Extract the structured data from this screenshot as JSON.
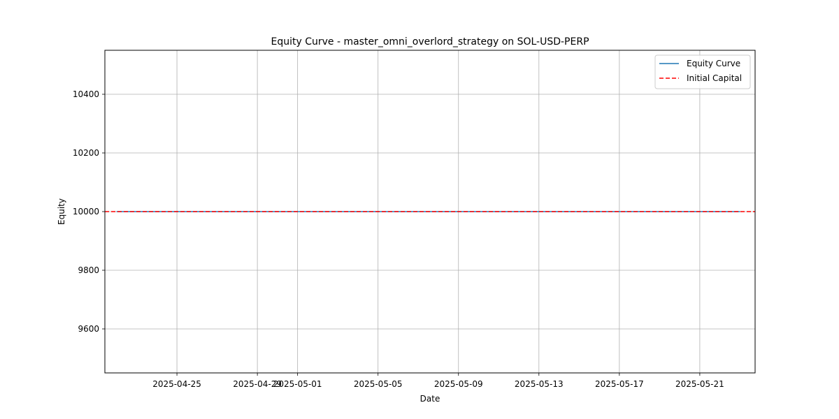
{
  "chart_data": {
    "type": "line",
    "title": "Equity Curve - master_omni_overlord_strategy on SOL-USD-PERP",
    "xlabel": "Date",
    "ylabel": "Equity",
    "x_axis_type": "date",
    "xlim": [
      "2025-04-21T10:00",
      "2025-05-23T18:00"
    ],
    "ylim": [
      9450,
      10550
    ],
    "x_ticks": [
      "2025-04-25",
      "2025-04-29",
      "2025-05-01",
      "2025-05-05",
      "2025-05-09",
      "2025-05-13",
      "2025-05-17",
      "2025-05-21"
    ],
    "y_ticks": [
      9600,
      9800,
      10000,
      10200,
      10400
    ],
    "grid": true,
    "legend_position": "top-right",
    "series": [
      {
        "name": "Equity Curve",
        "color": "#1f77b4",
        "style": "solid",
        "x": [
          "2025-04-22",
          "2025-05-23"
        ],
        "y": [
          10000,
          10000
        ]
      }
    ],
    "hlines": [
      {
        "name": "Initial Capital",
        "y": 10000,
        "color": "#ff0000",
        "style": "dashed"
      }
    ]
  }
}
